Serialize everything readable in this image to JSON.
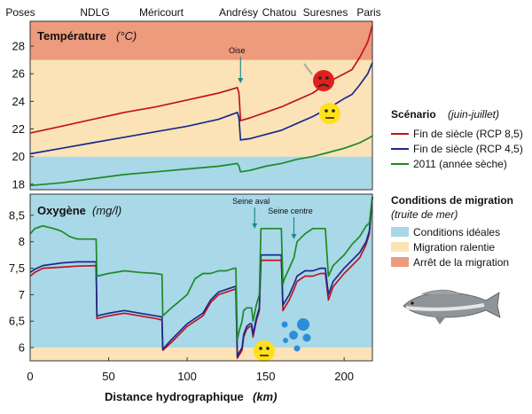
{
  "top_labels": [
    "Poses",
    "NDLG",
    "Méricourt",
    "Andrésy",
    "Chatou",
    "Suresnes",
    "Paris"
  ],
  "xlabel": "Distance hydrographique",
  "xlabel_unit": "(km)",
  "chart_data": [
    {
      "type": "line",
      "title": "Température",
      "title_unit": "(°C)",
      "xlim": [
        0,
        218
      ],
      "ylim": [
        17.6,
        29.8
      ],
      "yticks": [
        18,
        20,
        22,
        24,
        26,
        28
      ],
      "zones": [
        {
          "name": "Conditions idéales",
          "from": 17.6,
          "to": 20,
          "color": "#a9d8e8"
        },
        {
          "name": "Migration ralentie",
          "from": 20,
          "to": 27,
          "color": "#fbe3b7"
        },
        {
          "name": "Arrêt de la migration",
          "from": 27,
          "to": 29.8,
          "color": "#ee9a7c"
        }
      ],
      "annotations": [
        {
          "text": "Oise",
          "x": 134
        }
      ],
      "series": [
        {
          "name": "Fin de siècle (RCP 8,5)",
          "color": "#c0141c",
          "x": [
            0,
            20,
            40,
            60,
            80,
            100,
            120,
            132,
            133,
            134,
            140,
            150,
            160,
            170,
            180,
            190,
            200,
            205,
            210,
            215,
            218
          ],
          "y": [
            21.7,
            22.2,
            22.7,
            23.2,
            23.6,
            24.1,
            24.6,
            25.0,
            24.6,
            22.6,
            22.8,
            23.2,
            23.6,
            24.1,
            24.6,
            25.4,
            26.0,
            26.3,
            27.2,
            28.3,
            29.5
          ]
        },
        {
          "name": "Fin de siècle (RCP 4,5)",
          "color": "#1a2a8c",
          "x": [
            0,
            20,
            40,
            60,
            80,
            100,
            120,
            132,
            133,
            134,
            140,
            150,
            160,
            170,
            180,
            190,
            200,
            205,
            210,
            215,
            218
          ],
          "y": [
            20.2,
            20.6,
            21.0,
            21.4,
            21.8,
            22.2,
            22.7,
            23.2,
            22.8,
            21.2,
            21.3,
            21.6,
            21.9,
            22.4,
            22.9,
            23.5,
            24.2,
            24.5,
            25.2,
            26.0,
            26.8
          ]
        },
        {
          "name": "2011 (année sèche)",
          "color": "#1c8a24",
          "x": [
            0,
            20,
            40,
            60,
            80,
            100,
            120,
            132,
            133,
            134,
            140,
            150,
            160,
            170,
            180,
            190,
            200,
            205,
            210,
            215,
            218
          ],
          "y": [
            17.9,
            18.1,
            18.4,
            18.7,
            18.9,
            19.1,
            19.3,
            19.5,
            19.3,
            18.9,
            19.0,
            19.3,
            19.5,
            19.8,
            20.0,
            20.3,
            20.6,
            20.8,
            21.0,
            21.3,
            21.5
          ]
        }
      ]
    },
    {
      "type": "line",
      "title": "Oxygène",
      "title_unit": "(mg/l)",
      "xlim": [
        0,
        218
      ],
      "ylim": [
        5.75,
        8.9
      ],
      "xticks": [
        0,
        50,
        100,
        150,
        200
      ],
      "yticks": [
        6,
        6.5,
        7,
        7.5,
        8,
        8.5
      ],
      "ytick_labels": [
        "6",
        "6,5",
        "7",
        "7,5",
        "8",
        "8,5"
      ],
      "zones": [
        {
          "name": "Conditions idéales",
          "from": 6,
          "to": 8.9,
          "color": "#a9d8e8"
        },
        {
          "name": "Migration ralentie",
          "from": 5.75,
          "to": 6,
          "color": "#fbe3b7"
        }
      ],
      "annotations": [
        {
          "text": "Seine aval",
          "x": 143
        },
        {
          "text": "Seine centre",
          "x": 168
        }
      ],
      "series": [
        {
          "name": "Fin de siècle (RCP 8,5)",
          "color": "#c0141c",
          "x": [
            0,
            3,
            8,
            20,
            30,
            42,
            42.5,
            50,
            60,
            70,
            80,
            84,
            84.5,
            90,
            100,
            110,
            115,
            120,
            125,
            130,
            131,
            132,
            133,
            135,
            136,
            138,
            140,
            141,
            142,
            144,
            146,
            147,
            150,
            155,
            160,
            161,
            162,
            165,
            168,
            170,
            175,
            180,
            185,
            188,
            190,
            193,
            200,
            205,
            210,
            214,
            216,
            218
          ],
          "y": [
            7.35,
            7.42,
            7.5,
            7.52,
            7.54,
            7.55,
            6.55,
            6.6,
            6.65,
            6.6,
            6.55,
            6.52,
            5.95,
            6.1,
            6.4,
            6.6,
            6.85,
            7.0,
            7.05,
            7.1,
            7.1,
            5.8,
            5.85,
            5.95,
            6.2,
            6.35,
            6.4,
            6.4,
            6.2,
            6.5,
            6.7,
            7.65,
            7.65,
            7.65,
            7.65,
            6.7,
            6.75,
            6.9,
            7.1,
            7.25,
            7.35,
            7.35,
            7.4,
            7.4,
            6.9,
            7.15,
            7.4,
            7.55,
            7.7,
            7.95,
            8.15,
            8.85
          ]
        },
        {
          "name": "Fin de siècle (RCP 4,5)",
          "color": "#1a2a8c",
          "x": [
            0,
            3,
            8,
            20,
            30,
            42,
            42.5,
            50,
            60,
            70,
            80,
            84,
            84.5,
            90,
            100,
            110,
            115,
            120,
            125,
            130,
            131,
            132,
            133,
            135,
            136,
            138,
            140,
            141,
            142,
            144,
            146,
            147,
            150,
            155,
            160,
            161,
            162,
            165,
            168,
            170,
            175,
            180,
            185,
            188,
            190,
            193,
            200,
            205,
            210,
            214,
            216,
            218
          ],
          "y": [
            7.42,
            7.48,
            7.55,
            7.6,
            7.62,
            7.62,
            6.6,
            6.65,
            6.7,
            6.65,
            6.6,
            6.58,
            5.97,
            6.15,
            6.45,
            6.65,
            6.9,
            7.05,
            7.1,
            7.15,
            7.15,
            5.82,
            5.9,
            6.0,
            6.25,
            6.4,
            6.45,
            6.45,
            6.25,
            6.55,
            6.75,
            7.75,
            7.75,
            7.75,
            7.75,
            6.8,
            6.85,
            7.0,
            7.2,
            7.35,
            7.45,
            7.45,
            7.5,
            7.5,
            7.0,
            7.25,
            7.5,
            7.65,
            7.8,
            8.0,
            8.2,
            8.85
          ]
        },
        {
          "name": "2011 (année sèche)",
          "color": "#1c8a24",
          "x": [
            0,
            3,
            8,
            15,
            20,
            25,
            30,
            42,
            42.5,
            50,
            60,
            70,
            80,
            84,
            84.5,
            90,
            100,
            105,
            110,
            115,
            120,
            125,
            130,
            131,
            132,
            133,
            135,
            136,
            138,
            140,
            141,
            142,
            144,
            146,
            147,
            150,
            155,
            160,
            161,
            162,
            165,
            168,
            170,
            175,
            180,
            185,
            188,
            190,
            193,
            200,
            205,
            210,
            214,
            216,
            218
          ],
          "y": [
            8.15,
            8.25,
            8.3,
            8.25,
            8.2,
            8.1,
            8.05,
            8.05,
            7.35,
            7.4,
            7.45,
            7.42,
            7.4,
            7.38,
            6.6,
            6.75,
            7.0,
            7.3,
            7.4,
            7.4,
            7.45,
            7.45,
            7.5,
            7.5,
            6.15,
            6.3,
            6.5,
            6.7,
            6.75,
            6.75,
            6.75,
            6.5,
            6.8,
            7.0,
            8.25,
            8.25,
            8.25,
            8.25,
            7.2,
            7.3,
            7.5,
            7.7,
            8.0,
            8.15,
            8.25,
            8.25,
            8.25,
            7.35,
            7.55,
            7.75,
            7.95,
            8.1,
            8.3,
            8.35,
            8.85
          ]
        }
      ]
    }
  ],
  "legend_scenario": {
    "title": "Scénario",
    "subtitle": "(juin-juillet)",
    "items": [
      {
        "label": "Fin de siècle (RCP 8,5)",
        "color": "#c0141c"
      },
      {
        "label": "Fin de siècle (RCP 4,5)",
        "color": "#1a2a8c"
      },
      {
        "label": "2011 (année sèche)",
        "color": "#1c8a24"
      }
    ]
  },
  "legend_migration": {
    "title": "Conditions de migration",
    "subtitle": "(truite de mer)",
    "items": [
      {
        "label": "Conditions idéales",
        "color": "#a9d8e8"
      },
      {
        "label": "Migration ralentie",
        "color": "#fbe3b7"
      },
      {
        "label": "Arrêt de la migration",
        "color": "#ee9a7c"
      }
    ]
  }
}
